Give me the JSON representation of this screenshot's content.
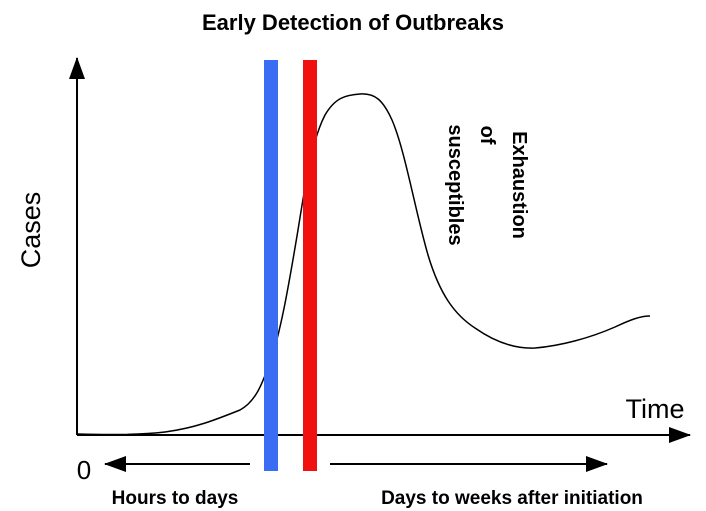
{
  "title": "Early Detection of Outbreaks",
  "y_label": "Cases",
  "x_label": "Time",
  "origin_label": "0",
  "annotation": [
    "Exhaustion",
    "of",
    "susceptibles"
  ],
  "left_label": "Hours to days",
  "right_label": "Days to weeks after initiation"
}
